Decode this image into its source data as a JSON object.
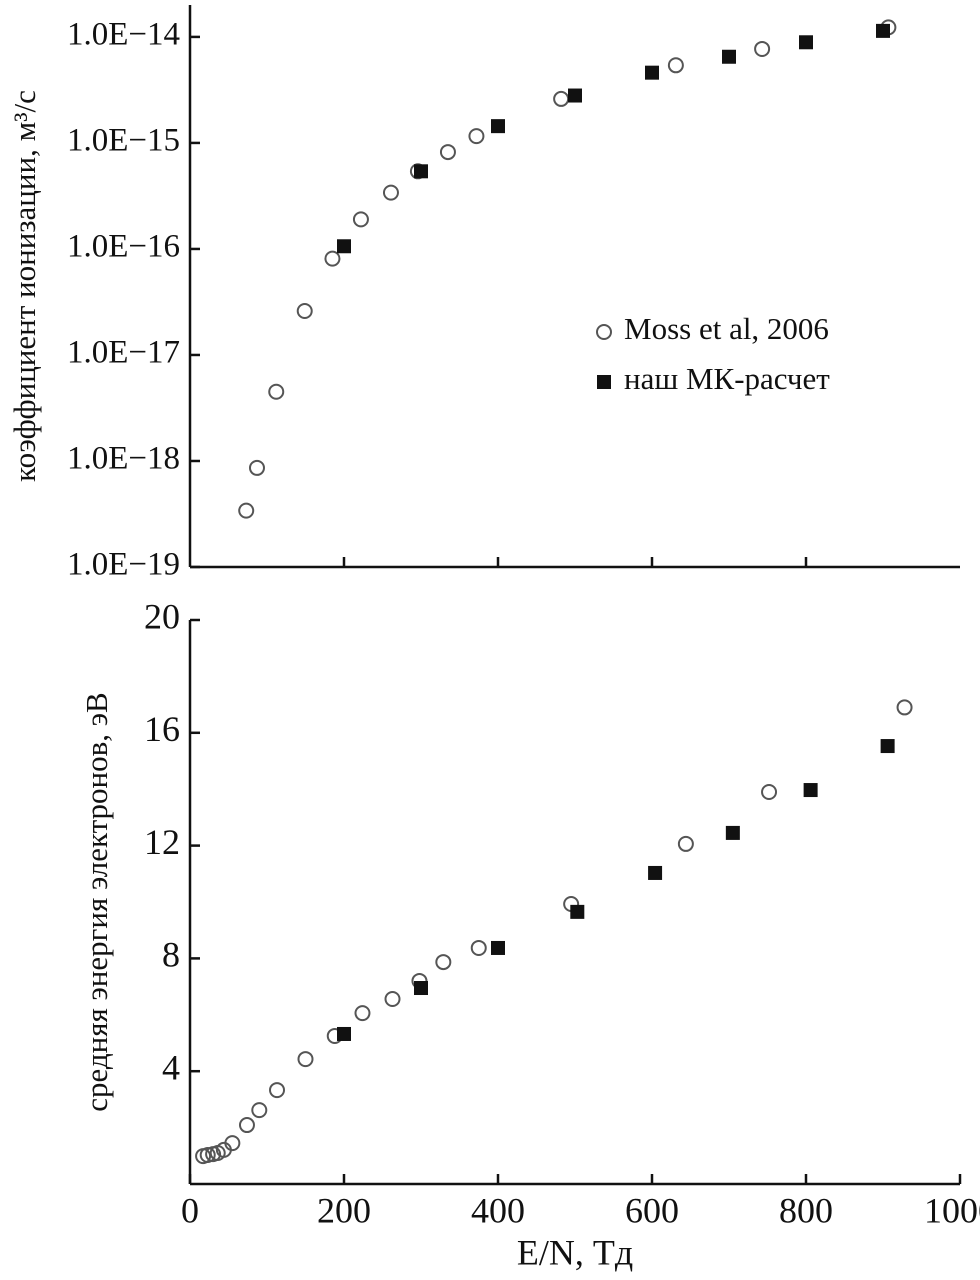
{
  "chart_data": [
    {
      "type": "scatter",
      "ylabel": "коэффициент ионизации, м³/с",
      "ylog": true,
      "xlim": [
        0,
        1000
      ],
      "xticks": [
        200,
        400,
        600,
        800
      ],
      "show_xtick_labels": false,
      "ylim": [
        1e-19,
        2e-14
      ],
      "yticks": [
        {
          "value": 1e-19,
          "label": "1.0E−19"
        },
        {
          "value": 1e-18,
          "label": "1.0E−18"
        },
        {
          "value": 1e-17,
          "label": "1.0E−17"
        },
        {
          "value": 1e-16,
          "label": "1.0E−16"
        },
        {
          "value": 1e-15,
          "label": "1.0E−15"
        },
        {
          "value": 1e-14,
          "label": "1.0E−14"
        }
      ],
      "legend": "right",
      "series": [
        {
          "name": "Moss et al, 2006",
          "marker": "circle-open",
          "color": "#555555",
          "x": [
            73,
            87,
            112,
            149,
            185,
            222,
            261,
            296,
            335,
            372,
            482,
            631,
            743,
            907
          ],
          "values": [
            3.4e-19,
            8.6e-19,
            4.5e-18,
            2.6e-17,
            8.1e-17,
            1.9e-16,
            3.4e-16,
            5.4e-16,
            8.2e-16,
            1.16e-15,
            2.6e-15,
            5.4e-15,
            7.7e-15,
            1.23e-14
          ]
        },
        {
          "name": "наш МК-расчет",
          "marker": "square",
          "color": "#111111",
          "x": [
            200,
            300,
            400,
            500,
            600,
            700,
            800,
            900
          ],
          "values": [
            1.06e-16,
            5.4e-16,
            1.44e-15,
            2.8e-15,
            4.6e-15,
            6.5e-15,
            8.9e-15,
            1.14e-14
          ]
        }
      ]
    },
    {
      "type": "scatter",
      "ylabel": "средняя энергия электронов, эВ",
      "xlabel": "E/N, Тд",
      "ylog": false,
      "xlim": [
        0,
        1000
      ],
      "xticks": [
        0,
        200,
        400,
        600,
        800,
        1000
      ],
      "show_xtick_labels": true,
      "ylim": [
        0,
        20
      ],
      "yticks": [
        4,
        8,
        12,
        16,
        20
      ],
      "series": [
        {
          "name": "Moss et al, 2006",
          "marker": "circle-open",
          "color": "#555555",
          "x": [
            17,
            23,
            30,
            36,
            44,
            55,
            74,
            90,
            113,
            150,
            188,
            224,
            263,
            298,
            329,
            375,
            495,
            644,
            752,
            928
          ],
          "values": [
            0.99,
            1.03,
            1.06,
            1.1,
            1.21,
            1.45,
            2.09,
            2.62,
            3.33,
            4.43,
            5.25,
            6.06,
            6.56,
            7.2,
            7.87,
            8.37,
            9.93,
            12.06,
            13.9,
            16.9
          ]
        },
        {
          "name": "наш МК-расчет",
          "marker": "square",
          "color": "#111111",
          "x": [
            200,
            300,
            400,
            503,
            604,
            705,
            806,
            906
          ],
          "values": [
            5.32,
            6.95,
            8.37,
            9.65,
            11.03,
            12.45,
            13.97,
            15.53
          ]
        }
      ]
    }
  ]
}
